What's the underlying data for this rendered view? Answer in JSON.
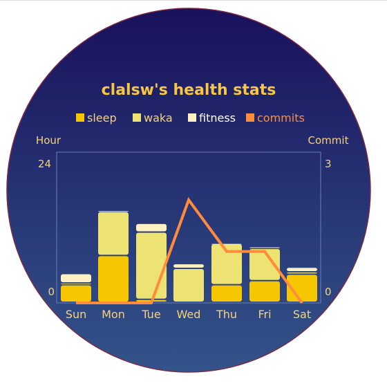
{
  "chart_data": {
    "type": "bar",
    "title": "clalsw's health stats",
    "categories": [
      "Sun",
      "Mon",
      "Tue",
      "Wed",
      "Thu",
      "Fri",
      "Sat"
    ],
    "y_left": {
      "label": "Hour",
      "range": [
        0,
        24
      ],
      "ticks": [
        "0",
        "24"
      ]
    },
    "y_right": {
      "label": "Commit",
      "range": [
        0,
        3
      ],
      "ticks": [
        "0",
        "3"
      ]
    },
    "series": [
      {
        "name": "sleep",
        "type": "bar",
        "stack": "health",
        "color": "#f6c700",
        "values": [
          3.0,
          8.0,
          0.5,
          0.0,
          3.0,
          3.7,
          4.8
        ]
      },
      {
        "name": "waka",
        "type": "bar",
        "stack": "health",
        "color": "#ece373",
        "values": [
          0.3,
          7.5,
          11.5,
          5.8,
          7.0,
          5.5,
          0.4
        ]
      },
      {
        "name": "fitness",
        "type": "bar",
        "stack": "health",
        "color": "#fff1c1",
        "values": [
          1.6,
          0.2,
          1.5,
          0.8,
          0.1,
          0.3,
          0.8
        ]
      },
      {
        "name": "commits",
        "type": "line",
        "axis": "right",
        "color": "#ff8c3a",
        "values": [
          0,
          0,
          0,
          2.2,
          1.1,
          1.1,
          0
        ]
      }
    ],
    "legend_position": "top-center",
    "grid": false
  },
  "colors": {
    "title": "#f7c744",
    "text": "#f7d27a",
    "bg_top": "#19115c",
    "bg_bottom": "#33548a",
    "circle_border": "#7a2a48",
    "axis": "#6b7fb2"
  }
}
